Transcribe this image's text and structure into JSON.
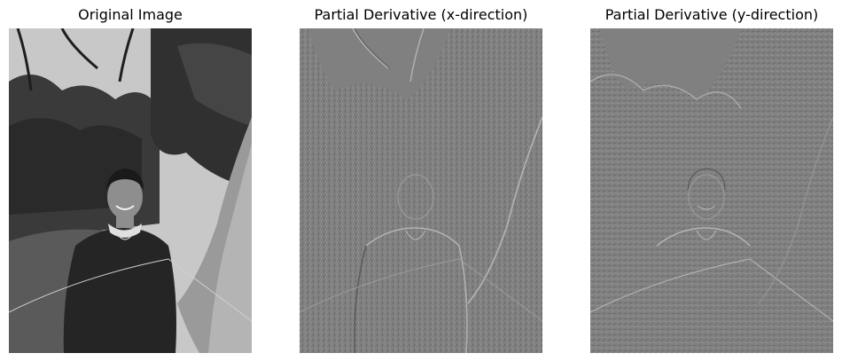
{
  "figure": {
    "panels": [
      {
        "title": "Original Image",
        "kind": "original"
      },
      {
        "title": "Partial Derivative (x-direction)",
        "kind": "gradient-x"
      },
      {
        "title": "Partial Derivative (y-direction)",
        "kind": "gradient-y"
      }
    ]
  },
  "colors": {
    "sky": "#c8c8c8",
    "foliage_dark": "#2a2a2a",
    "foliage_mid": "#4a4a4a",
    "trunk": "#9a9a9a",
    "sweater": "#252525",
    "skin": "#8e8e8e",
    "gradient_base": "#7f7f7f",
    "gradient_edge_light": "#b0b0b0",
    "gradient_edge_dark": "#5a5a5a"
  }
}
